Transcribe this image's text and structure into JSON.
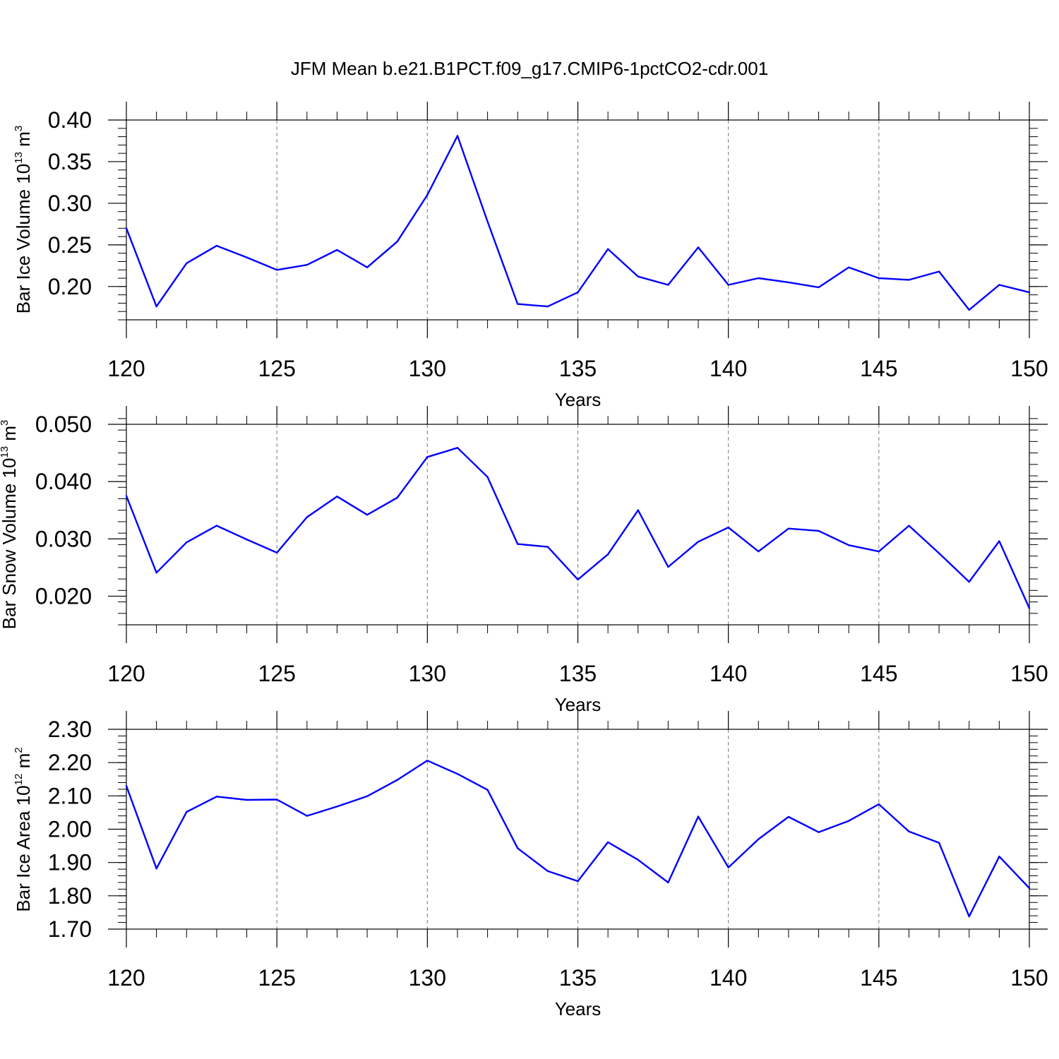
{
  "title": "JFM Mean b.e21.B1PCT.f09_g17.CMIP6-1pctCO2-cdr.001",
  "chart_data": [
    {
      "type": "line",
      "xlabel": "Years",
      "ylabel": {
        "text": "Bar Ice Volume 10",
        "exp": "13",
        "unit": " m",
        "unit_exp": "3"
      },
      "xlim": [
        120,
        150
      ],
      "ylim": [
        0.16,
        0.4
      ],
      "xticks": [
        120,
        125,
        130,
        135,
        140,
        145,
        150
      ],
      "yticks": [
        0.2,
        0.25,
        0.3,
        0.35,
        0.4
      ],
      "ytick_labels": [
        "0.20",
        "0.25",
        "0.30",
        "0.35",
        "0.40"
      ],
      "yminor_step": 0.01,
      "grid_x": "dashed",
      "line_color": "#0000ff",
      "x": [
        120,
        121,
        122,
        123,
        124,
        125,
        126,
        127,
        128,
        129,
        130,
        131,
        132,
        133,
        134,
        135,
        136,
        137,
        138,
        139,
        140,
        141,
        142,
        143,
        144,
        145,
        146,
        147,
        148,
        149,
        150
      ],
      "values": [
        0.27,
        0.176,
        0.228,
        0.249,
        0.235,
        0.22,
        0.226,
        0.244,
        0.223,
        0.254,
        0.31,
        0.381,
        0.278,
        0.179,
        0.176,
        0.193,
        0.245,
        0.212,
        0.202,
        0.247,
        0.202,
        0.21,
        0.205,
        0.199,
        0.223,
        0.21,
        0.208,
        0.218,
        0.172,
        0.202,
        0.193
      ]
    },
    {
      "type": "line",
      "xlabel": "Years",
      "ylabel": {
        "text": "Bar Snow Volume 10",
        "exp": "13",
        "unit": " m",
        "unit_exp": "3"
      },
      "xlim": [
        120,
        150
      ],
      "ylim": [
        0.015,
        0.05
      ],
      "xticks": [
        120,
        125,
        130,
        135,
        140,
        145,
        150
      ],
      "yticks": [
        0.02,
        0.03,
        0.04,
        0.05
      ],
      "ytick_labels": [
        "0.020",
        "0.030",
        "0.040",
        "0.050"
      ],
      "yminor_step": 0.002,
      "grid_x": "dashed",
      "line_color": "#0000ff",
      "x": [
        120,
        121,
        122,
        123,
        124,
        125,
        126,
        127,
        128,
        129,
        130,
        131,
        132,
        133,
        134,
        135,
        136,
        137,
        138,
        139,
        140,
        141,
        142,
        143,
        144,
        145,
        146,
        147,
        148,
        149,
        150
      ],
      "values": [
        0.0375,
        0.0241,
        0.0294,
        0.0323,
        0.0299,
        0.0276,
        0.0338,
        0.0374,
        0.0342,
        0.0372,
        0.0443,
        0.0459,
        0.0408,
        0.0291,
        0.0286,
        0.0229,
        0.0273,
        0.035,
        0.0251,
        0.0295,
        0.032,
        0.0278,
        0.0318,
        0.0314,
        0.0289,
        0.0278,
        0.0323,
        0.0275,
        0.0225,
        0.0296,
        0.0179
      ]
    },
    {
      "type": "line",
      "xlabel": "Years",
      "ylabel": {
        "text": "Bar Ice Area 10",
        "exp": "12",
        "unit": " m",
        "unit_exp": "2"
      },
      "xlim": [
        120,
        150
      ],
      "ylim": [
        1.7,
        2.3
      ],
      "xticks": [
        120,
        125,
        130,
        135,
        140,
        145,
        150
      ],
      "yticks": [
        1.7,
        1.8,
        1.9,
        2.0,
        2.1,
        2.2,
        2.3
      ],
      "ytick_labels": [
        "1.70",
        "1.80",
        "1.90",
        "2.00",
        "2.10",
        "2.20",
        "2.30"
      ],
      "yminor_step": 0.02,
      "grid_x": "dashed",
      "line_color": "#0000ff",
      "x": [
        120,
        121,
        122,
        123,
        124,
        125,
        126,
        127,
        128,
        129,
        130,
        131,
        132,
        133,
        134,
        135,
        136,
        137,
        138,
        139,
        140,
        141,
        142,
        143,
        144,
        145,
        146,
        147,
        148,
        149,
        150
      ],
      "values": [
        2.13,
        1.882,
        2.052,
        2.098,
        2.088,
        2.089,
        2.04,
        2.068,
        2.099,
        2.148,
        2.206,
        2.166,
        2.118,
        1.943,
        1.874,
        1.844,
        1.961,
        1.908,
        1.84,
        2.038,
        1.885,
        1.97,
        2.037,
        1.991,
        2.025,
        2.075,
        1.993,
        1.959,
        1.738,
        1.918,
        1.823
      ]
    }
  ]
}
